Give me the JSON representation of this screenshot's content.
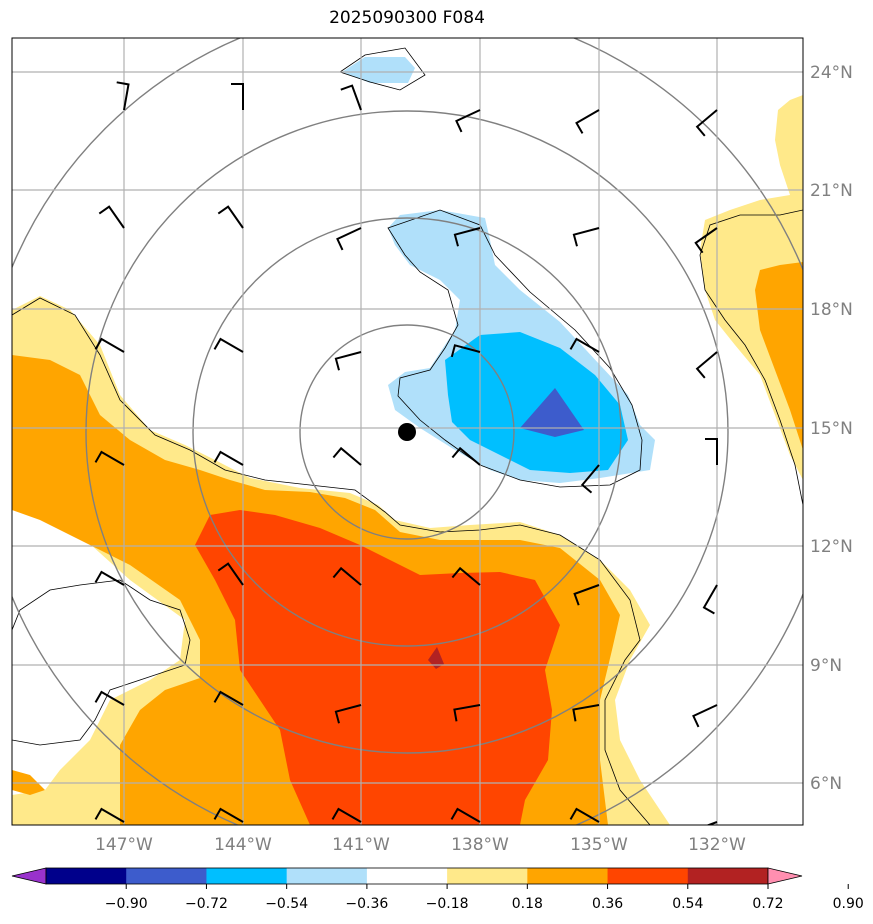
{
  "title": "2025090300 F084",
  "map": {
    "center_marker": "storm-center",
    "lat_labels": [
      "24°N",
      "21°N",
      "18°N",
      "15°N",
      "12°N",
      "9°N",
      "6°N"
    ],
    "lon_labels": [
      "147°W",
      "144°W",
      "141°W",
      "138°W",
      "135°W",
      "132°W"
    ]
  },
  "colorbar": {
    "colors": [
      "#9932cc",
      "#00008b",
      "#3d5ccc",
      "#00bfff",
      "#b0e0fa",
      "#ffffff",
      "#ffe98a",
      "#ffa500",
      "#ff4500",
      "#b22222",
      "#ff8fb0"
    ],
    "labels": [
      "−0.90",
      "−0.72",
      "−0.54",
      "−0.36",
      "−0.18",
      "0.18",
      "0.36",
      "0.54",
      "0.72",
      "0.90"
    ]
  }
}
